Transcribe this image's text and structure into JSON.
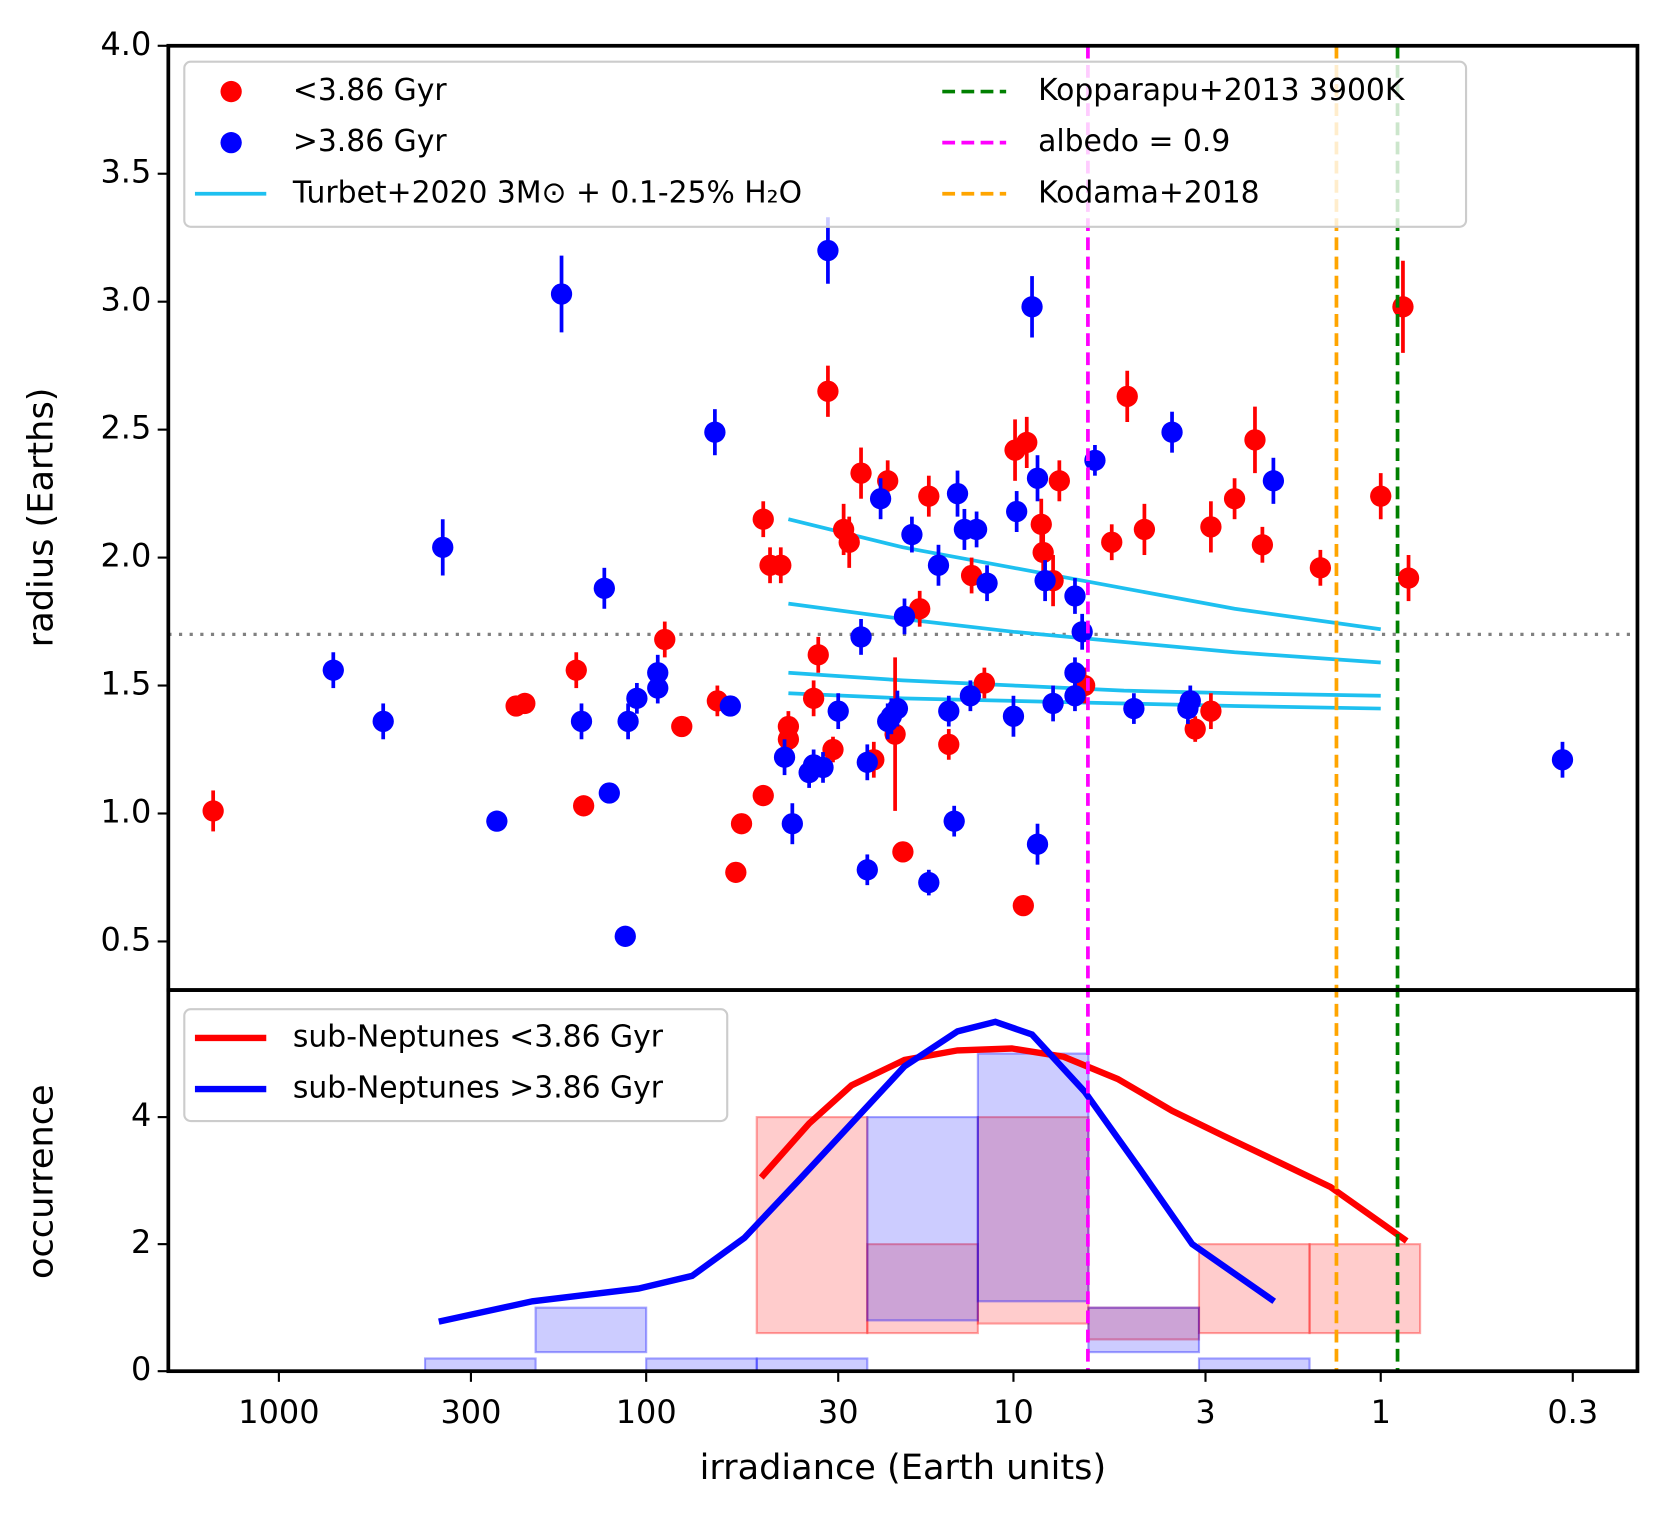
{
  "chart_data": [
    {
      "type": "scatter",
      "ylabel": "radius (Earths)",
      "xlog": true,
      "xlim": [
        2000,
        0.2
      ],
      "ylim": [
        0.31,
        4.0
      ],
      "yticks": [
        0.5,
        {
          "value": 1.0,
          "label": "1.0"
        },
        1.5,
        {
          "value": 2.0,
          "label": "2.0"
        },
        2.5,
        {
          "value": 3.0,
          "label": "3.0"
        },
        3.5,
        {
          "value": 4.0,
          "label": "4.0"
        }
      ],
      "series": [
        {
          "name": "<3.86 Gyr",
          "color": "#ff0000",
          "x": [
            1510,
            226,
            214,
            155,
            148,
            89,
            80,
            64,
            57,
            55,
            48,
            48,
            46,
            43,
            41,
            41,
            35,
            34,
            32,
            31,
            29,
            28,
            26,
            24,
            22,
            21,
            20,
            18,
            17,
            15,
            13,
            12,
            9.9,
            9.4,
            9.2,
            8.4,
            8.3,
            7.8,
            7.5,
            6.4,
            5.4,
            4.9,
            4.4,
            3.2,
            2.9,
            2.9,
            2.5,
            2.2,
            2.1,
            1.46,
            1.0,
            0.87,
            0.84
          ],
          "values": [
            1.01,
            1.42,
            1.43,
            1.56,
            1.03,
            1.68,
            1.34,
            1.44,
            0.77,
            0.96,
            1.07,
            2.15,
            1.97,
            1.97,
            1.34,
            1.29,
            1.45,
            1.62,
            2.65,
            1.25,
            2.11,
            2.06,
            2.33,
            1.21,
            2.3,
            1.31,
            0.85,
            1.8,
            2.24,
            1.27,
            1.93,
            1.51,
            2.42,
            0.64,
            2.45,
            2.13,
            2.02,
            1.91,
            2.3,
            1.5,
            2.06,
            2.63,
            2.11,
            1.33,
            1.4,
            2.12,
            2.23,
            2.46,
            2.05,
            1.96,
            2.24,
            2.98,
            1.92
          ],
          "errors": [
            0.08,
            0.03,
            0.03,
            0.07,
            0.03,
            0.07,
            0.04,
            0.06,
            0.03,
            0.03,
            0.03,
            0.07,
            0.07,
            0.07,
            0.06,
            0.06,
            0.07,
            0.07,
            0.1,
            0.05,
            0.1,
            0.1,
            0.1,
            0.07,
            0.08,
            0.3,
            0.04,
            0.07,
            0.08,
            0.06,
            0.07,
            0.06,
            0.12,
            0.03,
            0.1,
            0.1,
            0.1,
            0.1,
            0.08,
            0.07,
            0.07,
            0.1,
            0.1,
            0.05,
            0.07,
            0.1,
            0.08,
            0.13,
            0.07,
            0.07,
            0.09,
            0.18,
            0.09
          ]
        },
        {
          "name": ">3.86 Gyr",
          "color": "#0000ff",
          "x": [
            711,
            520,
            358,
            255,
            170,
            150,
            130,
            126,
            114,
            112,
            106,
            93,
            93,
            65,
            59,
            42,
            40,
            36,
            35,
            33,
            32,
            30,
            26,
            25,
            25,
            23,
            22,
            21.5,
            20.7,
            19.8,
            18.9,
            17,
            16,
            15,
            14.5,
            14.2,
            13.6,
            13.1,
            12.6,
            11.8,
            10,
            9.8,
            8.9,
            8.6,
            8.6,
            8.2,
            7.8,
            6.8,
            6.8,
            6.8,
            6.5,
            6.0,
            4.7,
            3.7,
            3.35,
            3.3,
            1.96,
            0.32
          ],
          "values": [
            1.56,
            1.36,
            2.04,
            0.97,
            3.03,
            1.36,
            1.88,
            1.08,
            0.52,
            1.36,
            1.45,
            1.55,
            1.49,
            2.49,
            1.42,
            1.22,
            0.96,
            1.16,
            1.19,
            1.18,
            3.2,
            1.4,
            1.69,
            1.2,
            0.78,
            2.23,
            1.36,
            1.38,
            1.41,
            1.77,
            2.09,
            0.73,
            1.97,
            1.4,
            0.97,
            2.25,
            2.11,
            1.46,
            2.11,
            1.9,
            1.38,
            2.18,
            2.98,
            2.31,
            0.88,
            1.91,
            1.43,
            1.46,
            1.85,
            1.55,
            1.71,
            2.38,
            1.41,
            2.49,
            1.41,
            1.44,
            2.3,
            1.21
          ],
          "errors": [
            0.07,
            0.07,
            0.11,
            0.04,
            0.15,
            0.07,
            0.08,
            0.03,
            0.03,
            0.07,
            0.06,
            0.07,
            0.06,
            0.09,
            0.04,
            0.07,
            0.08,
            0.06,
            0.06,
            0.06,
            0.13,
            0.07,
            0.07,
            0.07,
            0.06,
            0.08,
            0.07,
            0.07,
            0.07,
            0.07,
            0.07,
            0.05,
            0.08,
            0.06,
            0.06,
            0.09,
            0.08,
            0.06,
            0.07,
            0.07,
            0.08,
            0.08,
            0.12,
            0.09,
            0.08,
            0.08,
            0.07,
            0.06,
            0.07,
            0.06,
            0.07,
            0.06,
            0.06,
            0.08,
            0.06,
            0.06,
            0.09,
            0.07
          ]
        }
      ],
      "model_curves": {
        "name": "Turbet+2020 3M⊙ + 0.1-25% H₂O",
        "color": "#1ec0f0",
        "x": [
          41,
          20,
          10,
          5,
          2.5,
          1
        ],
        "curves": [
          [
            2.15,
            2.04,
            1.96,
            1.88,
            1.8,
            1.72
          ],
          [
            1.82,
            1.76,
            1.71,
            1.67,
            1.63,
            1.59
          ],
          [
            1.55,
            1.52,
            1.5,
            1.48,
            1.47,
            1.46
          ],
          [
            1.47,
            1.45,
            1.44,
            1.43,
            1.42,
            1.41
          ]
        ]
      },
      "vlines": [
        {
          "name": "Kopparapu+2013 3900K",
          "color": "#008000",
          "x": 0.9
        },
        {
          "name": "albedo = 0.9",
          "color": "#ff00ff",
          "x": 6.27
        },
        {
          "name": "Kodama+2018",
          "color": "#ffa500",
          "x": 1.32
        }
      ],
      "hline": {
        "value": 1.7,
        "color": "#808080"
      }
    },
    {
      "type": "histogram",
      "ylabel": "occurrence",
      "xlabel": "irradiance (Earth units)",
      "xlog": true,
      "xlim": [
        2000,
        0.2
      ],
      "ylim": [
        0,
        6
      ],
      "yticks": [
        0,
        2,
        4
      ],
      "xticks": [
        1000,
        300,
        100,
        30,
        10,
        3,
        1,
        0.3
      ],
      "bins": [
        400,
        200,
        100,
        50,
        25,
        12.5,
        6.25,
        3.125,
        1.5625,
        0.78125
      ],
      "bands": [
        {
          "color": "#ff0000",
          "upper": [
            0,
            0,
            0,
            4,
            2,
            4,
            1,
            2,
            2
          ],
          "lower": [
            0,
            0,
            0,
            0.6,
            0.6,
            0.75,
            0.5,
            0.6,
            0.6
          ]
        },
        {
          "color": "#0000ff",
          "upper": [
            0.2,
            1,
            0.2,
            0.2,
            4,
            5,
            1,
            0.2,
            0
          ],
          "lower": [
            0,
            0.3,
            0,
            0,
            0.8,
            1.1,
            0.3,
            0,
            0
          ]
        }
      ],
      "series": [
        {
          "name": "sub-Neptunes <3.86 Gyr",
          "color": "#ff0000",
          "x": [
            48.6,
            36,
            27.6,
            19.8,
            14.2,
            10.1,
            7.3,
            5.2,
            3.7,
            2.67,
            1.91,
            1.37,
            0.85
          ],
          "values": [
            3.05,
            3.9,
            4.5,
            4.9,
            5.05,
            5.08,
            4.95,
            4.6,
            4.1,
            3.7,
            3.3,
            2.9,
            2.05
          ]
        },
        {
          "name": "sub-Neptunes >3.86 Gyr",
          "color": "#0000ff",
          "x": [
            367,
            204,
            105,
            75,
            54,
            38.5,
            27.6,
            19.8,
            14.2,
            11.2,
            8.9,
            6.4,
            4.55,
            3.26,
            1.95
          ],
          "values": [
            0.78,
            1.1,
            1.3,
            1.5,
            2.1,
            3.0,
            3.9,
            4.8,
            5.35,
            5.5,
            5.3,
            4.4,
            3.2,
            2.0,
            1.1
          ]
        }
      ]
    }
  ]
}
